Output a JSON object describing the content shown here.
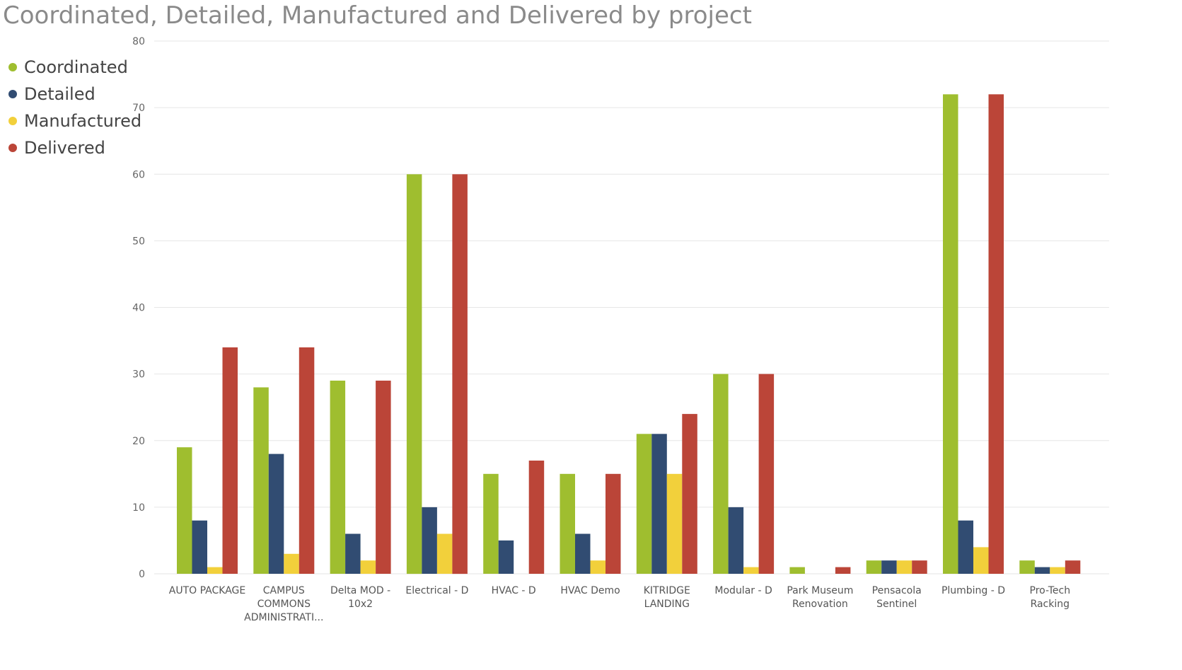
{
  "chart_data": {
    "type": "bar",
    "title": "Coordinated, Detailed, Manufactured and Delivered by project",
    "xlabel": "",
    "ylabel": "",
    "ylim": [
      0,
      80
    ],
    "yticks": [
      0,
      10,
      20,
      30,
      40,
      50,
      60,
      70,
      80
    ],
    "grid": true,
    "legend_position": "left",
    "categories": [
      [
        "AUTO PACKAGE"
      ],
      [
        "CAMPUS",
        "COMMONS",
        "ADMINISTRATI..."
      ],
      [
        "Delta MOD -",
        "10x2"
      ],
      [
        "Electrical - D"
      ],
      [
        "HVAC - D"
      ],
      [
        "HVAC Demo"
      ],
      [
        "KITRIDGE",
        "LANDING"
      ],
      [
        "Modular - D"
      ],
      [
        "Park Museum",
        "Renovation"
      ],
      [
        "Pensacola",
        "Sentinel"
      ],
      [
        "Plumbing - D"
      ],
      [
        "Pro-Tech",
        "Racking"
      ]
    ],
    "series": [
      {
        "name": "Coordinated",
        "color": "#9fbe2f",
        "values": [
          19,
          28,
          29,
          60,
          15,
          15,
          21,
          30,
          1,
          2,
          72,
          2
        ]
      },
      {
        "name": "Detailed",
        "color": "#314c72",
        "values": [
          8,
          18,
          6,
          10,
          5,
          6,
          21,
          10,
          0,
          2,
          8,
          1
        ]
      },
      {
        "name": "Manufactured",
        "color": "#f2d03b",
        "values": [
          1,
          3,
          2,
          6,
          0,
          2,
          15,
          1,
          0,
          2,
          4,
          1
        ]
      },
      {
        "name": "Delivered",
        "color": "#bb4538",
        "values": [
          34,
          34,
          29,
          60,
          17,
          15,
          24,
          30,
          1,
          2,
          72,
          2
        ]
      }
    ]
  }
}
